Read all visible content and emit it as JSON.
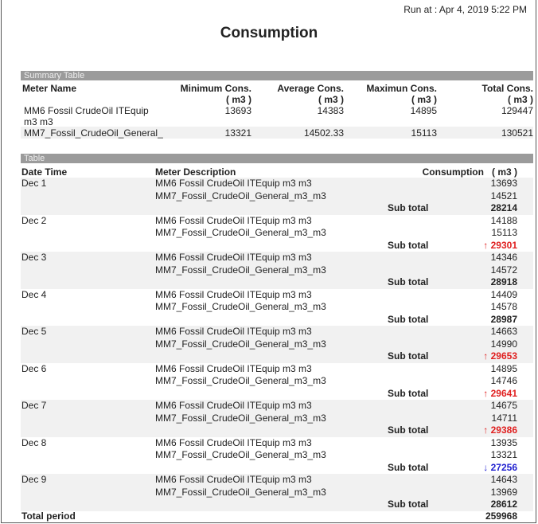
{
  "run_at": "Run at : Apr 4, 2019 5:22 PM",
  "title": "Consumption",
  "summary": {
    "bar_label": "Summary Table",
    "headers": {
      "meter": "Meter Name",
      "min": "Minimum Cons.",
      "avg": "Average Cons.",
      "max": "Maximun Cons.",
      "total": "Total Cons.",
      "unit": "( m3 )"
    },
    "rows": [
      {
        "meter_line1": "MM6 Fossil CrudeOil ITEquip",
        "meter_line2": "m3 m3",
        "min": "13693",
        "avg": "14383",
        "max": "14895",
        "total": "129447"
      },
      {
        "meter_line1": "MM7_Fossil_CrudeOil_General_",
        "meter_line2": "",
        "min": "13321",
        "avg": "14502.33",
        "max": "15113",
        "total": "130521"
      }
    ]
  },
  "table": {
    "bar_label": "Table",
    "headers": {
      "date": "Date Time",
      "desc": "Meter Description",
      "cons": "Consumption",
      "unit": "( m3 )"
    },
    "subtotal_label": "Sub total",
    "meter1": "MM6 Fossil CrudeOil ITEquip m3 m3",
    "meter2": "MM7_Fossil_CrudeOil_General_m3_m3",
    "colors": {
      "up": "#e02020",
      "down": "#2020d0"
    },
    "groups": [
      {
        "date": "Dec 1",
        "v1": "13693",
        "v2": "14521",
        "sub": "28214",
        "trend": "none"
      },
      {
        "date": "Dec 2",
        "v1": "14188",
        "v2": "15113",
        "sub": "29301",
        "trend": "up"
      },
      {
        "date": "Dec 3",
        "v1": "14346",
        "v2": "14572",
        "sub": "28918",
        "trend": "none"
      },
      {
        "date": "Dec 4",
        "v1": "14409",
        "v2": "14578",
        "sub": "28987",
        "trend": "none"
      },
      {
        "date": "Dec 5",
        "v1": "14663",
        "v2": "14990",
        "sub": "29653",
        "trend": "up"
      },
      {
        "date": "Dec 6",
        "v1": "14895",
        "v2": "14746",
        "sub": "29641",
        "trend": "up"
      },
      {
        "date": "Dec 7",
        "v1": "14675",
        "v2": "14711",
        "sub": "29386",
        "trend": "up"
      },
      {
        "date": "Dec 8",
        "v1": "13935",
        "v2": "13321",
        "sub": "27256",
        "trend": "down"
      },
      {
        "date": "Dec 9",
        "v1": "14643",
        "v2": "13969",
        "sub": "28612",
        "trend": "none"
      }
    ],
    "total_label": "Total period",
    "total": "259968"
  }
}
